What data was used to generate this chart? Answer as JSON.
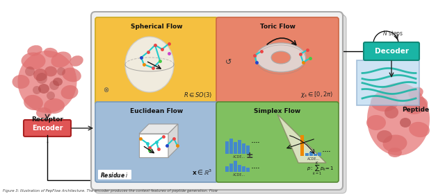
{
  "caption": "Figure 3: Illustration of PepFlow Architecture. The encoder produces the context features of peptide generation. Flow",
  "encoder_color": "#e05555",
  "decoder_color": "#1ab5a5",
  "spherical_bg": "#f5c040",
  "toric_bg": "#e8846a",
  "euclidean_bg": "#a0bcd8",
  "simplex_bg": "#80c060",
  "encoder_text": "Encoder",
  "decoder_text": "Decoder",
  "receptor_text": "Receptor",
  "peptide_text": "Peptide",
  "spherical_title": "Spherical Flow",
  "toric_title": "Toric Flow",
  "euclidean_title": "Euclidean Flow",
  "simplex_title": "Simplex Flow",
  "spherical_math": "$R \\in SO(3)$",
  "toric_math": "$\\chi_k \\in [0, 2\\pi)$",
  "euclidean_math": "$\\mathbf{x} \\in \\mathbb{R}^3$",
  "simplex_math": "$p:\\!\\sum_{k=1}^{K}\\!p_k\\!=\\!1$",
  "residue_label": "Residue $i$",
  "n_steps_text": "$N$ steps"
}
